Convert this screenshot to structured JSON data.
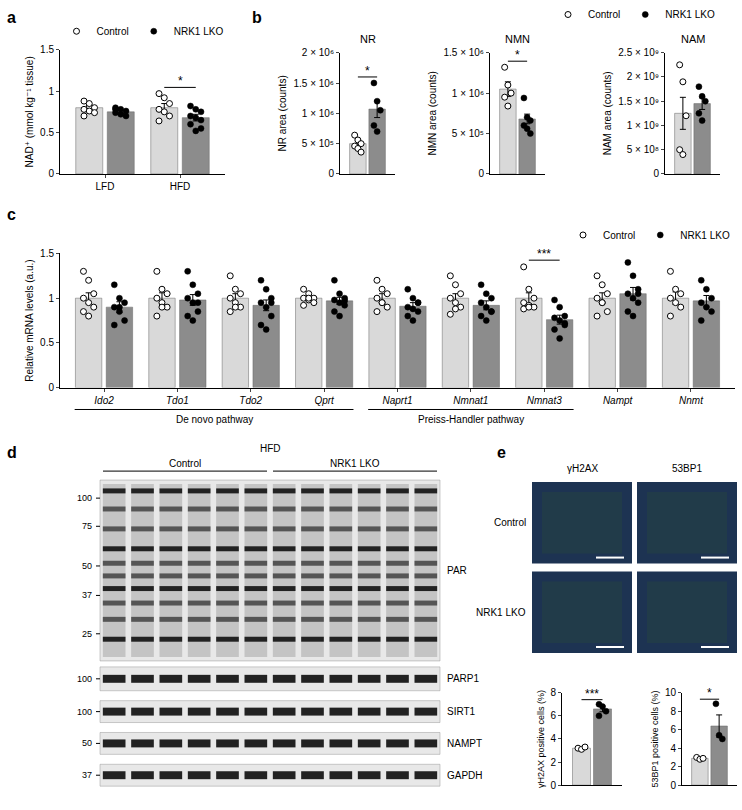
{
  "chart_data": [
    {
      "type": "bar",
      "ylabel": "NAD⁺ (mmol kg⁻¹ tissue)",
      "categories": [
        "LFD",
        "HFD"
      ],
      "ylim": [
        0,
        1.5
      ],
      "yticks": [
        0,
        0.5,
        1,
        1.5
      ],
      "grid": false,
      "legend": "top",
      "series": [
        {
          "name": "Control",
          "color": "#d9d9d9",
          "marker": "open",
          "values": [
            0.8,
            0.8
          ],
          "errors": [
            0.03,
            0.05
          ],
          "points": [
            [
              0.88,
              0.82,
              0.8,
              0.78,
              0.76,
              0.74,
              0.7,
              0.85
            ],
            [
              0.97,
              0.92,
              0.85,
              0.78,
              0.75,
              0.7,
              0.64
            ]
          ]
        },
        {
          "name": "NRK1 LKO",
          "color": "#8c8c8c",
          "marker": "filled",
          "values": [
            0.75,
            0.68
          ],
          "errors": [
            0.02,
            0.04
          ],
          "points": [
            [
              0.8,
              0.78,
              0.76,
              0.74,
              0.72,
              0.7,
              0.78
            ],
            [
              0.82,
              0.78,
              0.75,
              0.7,
              0.68,
              0.65,
              0.6,
              0.52,
              0.55
            ]
          ]
        }
      ],
      "annotations": [
        {
          "text": "*",
          "x": 1
        }
      ]
    },
    {
      "type": "bar",
      "title": "NR",
      "ylabel": "NR area (counts)",
      "categories": [
        null
      ],
      "ylim": [
        0,
        2000000
      ],
      "yticks": [
        0,
        {
          "value": 500000,
          "label": "5 × 10⁵"
        },
        {
          "value": 1000000,
          "label": "1 × 10⁶"
        },
        {
          "value": 1500000,
          "label": "1.5 × 10⁶"
        },
        {
          "value": 2000000,
          "label": "2 × 10⁶"
        }
      ],
      "grid": false,
      "tick_labels": "y",
      "series": [
        {
          "name": "Control",
          "color": "#d9d9d9",
          "marker": "open",
          "values": [
            500000
          ],
          "errors": [
            60000
          ],
          "points": [
            [
              640000,
              560000,
              500000,
              460000,
              420000,
              360000
            ]
          ]
        },
        {
          "name": "NRK1 LKO",
          "color": "#8c8c8c",
          "marker": "filled",
          "values": [
            1070000
          ],
          "errors": [
            140000
          ],
          "points": [
            [
              1500000,
              1200000,
              1050000,
              800000,
              700000
            ]
          ]
        }
      ],
      "annotations": [
        {
          "text": "*",
          "x": 0
        }
      ]
    },
    {
      "type": "bar",
      "title": "NMN",
      "ylabel": "NMN area (counts)",
      "categories": [
        null
      ],
      "ylim": [
        0,
        1500000
      ],
      "yticks": [
        0,
        {
          "value": 500000,
          "label": "5 × 10⁵"
        },
        {
          "value": 1000000,
          "label": "1 × 10⁶"
        },
        {
          "value": 1500000,
          "label": "1.5 × 10⁶"
        }
      ],
      "grid": false,
      "tick_labels": "y",
      "series": [
        {
          "name": "Control",
          "color": "#d9d9d9",
          "marker": "open",
          "values": [
            1050000
          ],
          "errors": [
            90000
          ],
          "points": [
            [
              1320000,
              1100000,
              1000000,
              950000,
              840000
            ]
          ]
        },
        {
          "name": "NRK1 LKO",
          "color": "#8c8c8c",
          "marker": "filled",
          "values": [
            680000
          ],
          "errors": [
            60000
          ],
          "points": [
            [
              940000,
              700000,
              660000,
              600000,
              560000,
              500000
            ]
          ]
        }
      ],
      "annotations": [
        {
          "text": "*",
          "x": 0
        }
      ]
    },
    {
      "type": "bar",
      "title": "NAM",
      "ylabel": "NAM area (counts)",
      "categories": [
        null
      ],
      "ylim": [
        0,
        2500000000
      ],
      "yticks": [
        0,
        {
          "value": 500000000,
          "label": "5 × 10⁸"
        },
        {
          "value": 1000000000,
          "label": "1 × 10⁹"
        },
        {
          "value": 1500000000,
          "label": "1.5 × 10⁹"
        },
        {
          "value": 2000000000,
          "label": "2 × 10⁹"
        },
        {
          "value": 2500000000,
          "label": "2.5 × 10⁹"
        }
      ],
      "grid": false,
      "tick_labels": "y",
      "legend": "top right",
      "series": [
        {
          "name": "Control",
          "color": "#d9d9d9",
          "marker": "open",
          "values": [
            1250000000
          ],
          "errors": [
            330000000
          ],
          "points": [
            [
              2250000000,
              1900000000,
              1200000000,
              500000000,
              400000000
            ]
          ]
        },
        {
          "name": "NRK1 LKO",
          "color": "#8c8c8c",
          "marker": "filled",
          "values": [
            1450000000
          ],
          "errors": [
            120000000
          ],
          "points": [
            [
              1800000000,
              1600000000,
              1500000000,
              1250000000,
              1100000000
            ]
          ]
        }
      ]
    },
    {
      "type": "bar",
      "ylabel": "Relative mRNA levels (a.u.)",
      "categories": [
        "Ido2",
        "Tdo1",
        "Tdo2",
        "Qprt",
        "Naprt1",
        "Nmnat1",
        "Nmnat3",
        "Nampt",
        "Nnmt"
      ],
      "ylim": [
        0,
        1.5
      ],
      "yticks": [
        0,
        0.5,
        1,
        1.5
      ],
      "grid": false,
      "legend": "top right",
      "series": [
        {
          "name": "Control",
          "color": "#d9d9d9",
          "marker": "open",
          "values": [
            1.0,
            1.0,
            1.0,
            1.0,
            1.0,
            1.0,
            1.0,
            1.0,
            1.0
          ],
          "errors": [
            0.06,
            0.06,
            0.05,
            0.03,
            0.05,
            0.05,
            0.06,
            0.06,
            0.07
          ],
          "points": [
            [
              1.3,
              1.2,
              1.05,
              1.0,
              0.95,
              0.9,
              0.85,
              0.8
            ],
            [
              1.3,
              1.1,
              1.05,
              1.0,
              0.95,
              0.9,
              0.8,
              0.9
            ],
            [
              1.25,
              1.1,
              1.05,
              1.0,
              0.95,
              0.9,
              0.85,
              0.9
            ],
            [
              1.1,
              1.05,
              1.0,
              1.0,
              0.98,
              0.95,
              0.92,
              1.0
            ],
            [
              1.2,
              1.1,
              1.05,
              1.0,
              0.95,
              0.9,
              0.85,
              0.95
            ],
            [
              1.25,
              1.15,
              1.05,
              1.0,
              0.95,
              0.9,
              0.82,
              0.88
            ],
            [
              1.35,
              1.1,
              1.0,
              0.95,
              0.92,
              0.9,
              0.88,
              0.9
            ],
            [
              1.25,
              1.15,
              1.05,
              1.0,
              0.95,
              0.85,
              0.8,
              0.95
            ],
            [
              1.3,
              1.1,
              1.05,
              1.0,
              0.95,
              0.9,
              0.8
            ]
          ]
        },
        {
          "name": "NRK1 LKO",
          "color": "#8c8c8c",
          "marker": "filled",
          "values": [
            0.9,
            0.98,
            0.92,
            0.97,
            0.91,
            0.92,
            0.76,
            1.05,
            0.97
          ],
          "errors": [
            0.06,
            0.06,
            0.06,
            0.04,
            0.04,
            0.05,
            0.05,
            0.07,
            0.06
          ],
          "points": [
            [
              1.15,
              1.0,
              0.95,
              0.9,
              0.85,
              0.75,
              0.7,
              0.9
            ],
            [
              1.3,
              1.15,
              1.05,
              1.0,
              0.95,
              0.85,
              0.8,
              0.75,
              0.95
            ],
            [
              1.2,
              1.1,
              1.0,
              0.95,
              0.9,
              0.8,
              0.7,
              0.65,
              0.95
            ],
            [
              1.2,
              1.05,
              1.0,
              0.98,
              0.95,
              0.92,
              0.85,
              0.8,
              0.97
            ],
            [
              1.1,
              1.0,
              0.95,
              0.9,
              0.88,
              0.85,
              0.8,
              0.75,
              0.95
            ],
            [
              1.15,
              1.05,
              1.0,
              0.95,
              0.9,
              0.85,
              0.8,
              0.75,
              0.85
            ],
            [
              0.98,
              0.9,
              0.8,
              0.78,
              0.75,
              0.7,
              0.65,
              0.55,
              0.72
            ],
            [
              1.4,
              1.25,
              1.1,
              1.05,
              1.0,
              0.95,
              0.85,
              0.8,
              1.05
            ],
            [
              1.2,
              1.1,
              1.0,
              0.95,
              0.9,
              0.85,
              0.75
            ]
          ]
        }
      ],
      "annotations": [
        {
          "text": "***",
          "x": 6
        }
      ],
      "groups": [
        {
          "label": "De novo pathway",
          "from": "Ido2",
          "to": "Qprt"
        },
        {
          "label": "Preiss-Handler pathway",
          "from": "Naprt1",
          "to": "Nmnat3"
        }
      ]
    },
    {
      "type": "bar",
      "ylabel": "γH2AX positive cells (%)",
      "categories": [
        null
      ],
      "ylim": [
        0,
        8
      ],
      "yticks": [
        0,
        2,
        4,
        6,
        8
      ],
      "grid": false,
      "tick_labels": "y",
      "series": [
        {
          "color": "#d9d9d9",
          "marker": "open",
          "values": [
            3.2
          ],
          "errors": [
            0.06
          ],
          "points": [
            [
              3.2,
              3.1,
              3.3
            ]
          ]
        },
        {
          "color": "#8c8c8c",
          "marker": "filled",
          "values": [
            6.6
          ],
          "errors": [
            0.25
          ],
          "points": [
            [
              7.0,
              6.8,
              6.4,
              6.0
            ]
          ]
        }
      ],
      "annotations": [
        {
          "text": "***",
          "x": 0
        }
      ]
    },
    {
      "type": "bar",
      "ylabel": "53BP1 positive cells (%)",
      "categories": [
        null
      ],
      "ylim": [
        0,
        10
      ],
      "yticks": [
        0,
        2,
        4,
        6,
        8,
        10
      ],
      "grid": false,
      "tick_labels": "y",
      "series": [
        {
          "color": "#d9d9d9",
          "marker": "open",
          "values": [
            2.9
          ],
          "errors": [
            0.1
          ],
          "points": [
            [
              3.0,
              2.8,
              2.9
            ]
          ]
        },
        {
          "color": "#8c8c8c",
          "marker": "filled",
          "values": [
            6.4
          ],
          "errors": [
            1.2
          ],
          "points": [
            [
              8.8,
              5.4,
              5.0
            ]
          ]
        }
      ],
      "annotations": [
        {
          "text": "*",
          "x": 0
        }
      ]
    }
  ],
  "panel_labels": [
    "a",
    "b",
    "c",
    "d",
    "e"
  ],
  "blot": {
    "condition": "HFD",
    "groups": [
      {
        "label": "Control",
        "lanes": 6
      },
      {
        "label": "NRK1 LKO",
        "lanes": 6
      }
    ],
    "panels": [
      {
        "label": "PAR",
        "markers": [
          100,
          75,
          50,
          37,
          25
        ]
      },
      {
        "label": "PARP1",
        "markers": [
          100
        ]
      },
      {
        "label": "SIRT1",
        "markers": [
          100
        ]
      },
      {
        "label": "NAMPT",
        "markers": [
          50
        ]
      },
      {
        "label": "GAPDH",
        "markers": [
          37
        ]
      }
    ]
  },
  "micrographs": {
    "columns": [
      "γH2AX",
      "53BP1"
    ],
    "rows": [
      "Control",
      "NRK1 LKO"
    ]
  }
}
